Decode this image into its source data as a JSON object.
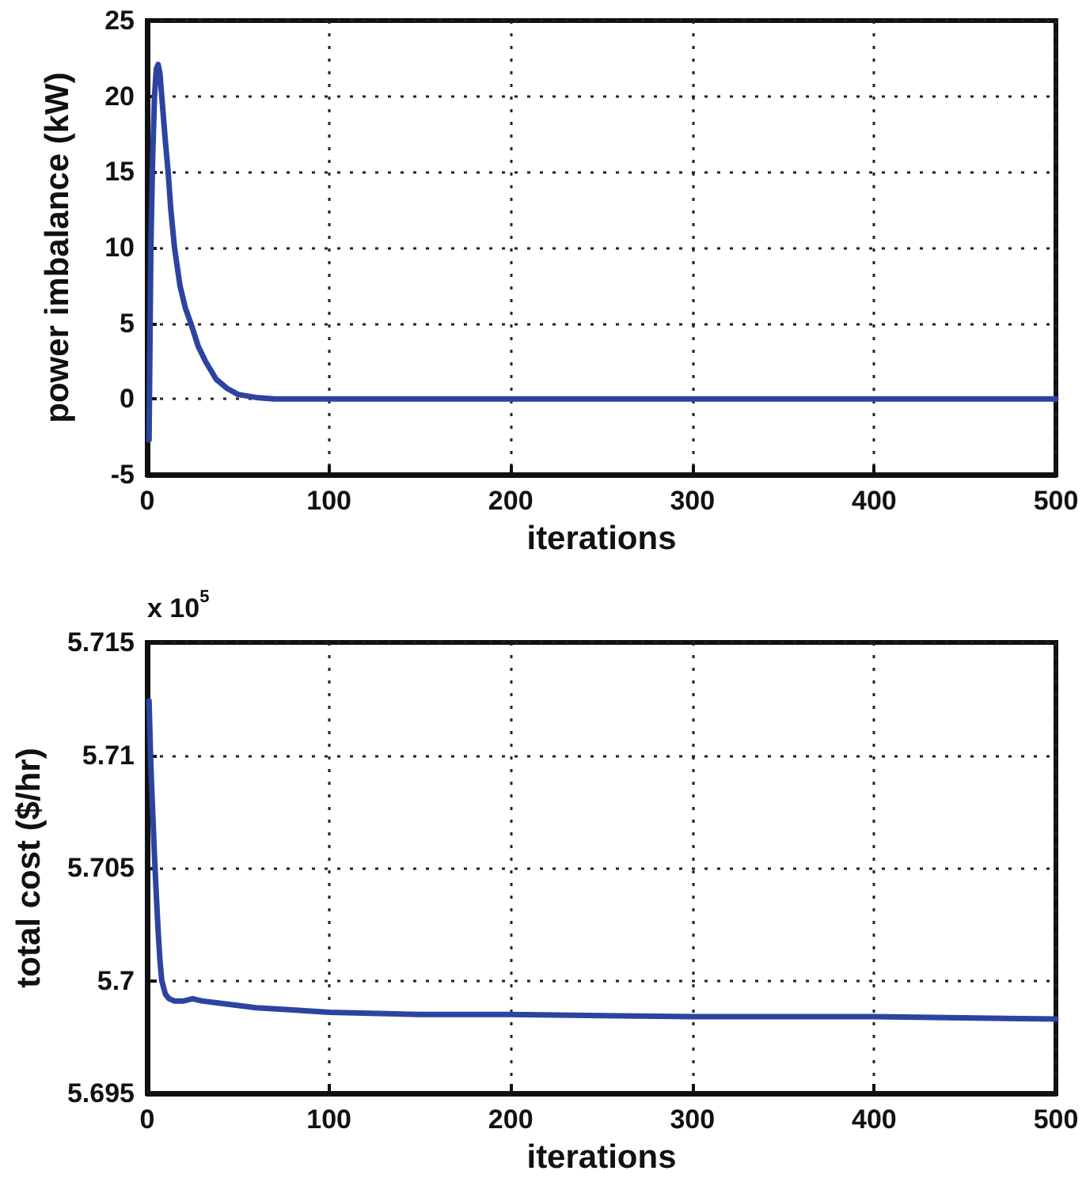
{
  "chart_data": [
    {
      "type": "line",
      "xlabel": "iterations",
      "ylabel": "power imbalance (kW)",
      "xlim": [
        0,
        500
      ],
      "xticks": [
        0,
        100,
        200,
        300,
        400,
        500
      ],
      "ylim": [
        -5,
        25
      ],
      "yticks": [
        -5,
        0,
        5,
        10,
        15,
        20,
        25
      ],
      "grid": true,
      "marker": "none",
      "line_style": "solid",
      "series": [
        {
          "color": "#2e43a0",
          "x": [
            1,
            2,
            3,
            4,
            5,
            6,
            7,
            8,
            10,
            11.5,
            13,
            15,
            18,
            21,
            24,
            28,
            32,
            38,
            44,
            50,
            60,
            70,
            80,
            100,
            150,
            200,
            300,
            400,
            500
          ],
          "values": [
            -2.7,
            10,
            16,
            20,
            21.8,
            22.1,
            21.5,
            20,
            17,
            15,
            12.5,
            10,
            7.5,
            6,
            5,
            3.5,
            2.5,
            1.3,
            0.7,
            0.3,
            0.1,
            0,
            0,
            0,
            0,
            0,
            0,
            0,
            0
          ]
        }
      ]
    },
    {
      "type": "line",
      "xlabel": "iterations",
      "ylabel": "total cost ($/hr)",
      "annotations": [
        "x 10$^{5}$"
      ],
      "xlim": [
        0,
        500
      ],
      "xticks": [
        0,
        100,
        200,
        300,
        400,
        500
      ],
      "ylim": [
        5.695,
        5.715
      ],
      "yticks": [
        5.695,
        5.7,
        5.705,
        5.71,
        5.715
      ],
      "grid": true,
      "marker": "none",
      "line_style": "solid",
      "series": [
        {
          "color": "#2e43a0",
          "x": [
            1,
            2,
            3,
            4,
            5,
            6,
            7,
            8,
            10,
            12,
            15,
            20,
            25,
            30,
            40,
            60,
            80,
            100,
            150,
            200,
            300,
            400,
            500
          ],
          "values": [
            5.7124,
            5.7095,
            5.7075,
            5.7055,
            5.7038,
            5.7022,
            5.7009,
            5.7,
            5.6994,
            5.6992,
            5.6991,
            5.6991,
            5.6992,
            5.6991,
            5.699,
            5.6988,
            5.6987,
            5.6986,
            5.6985,
            5.6985,
            5.6984,
            5.6984,
            5.6983
          ]
        }
      ]
    }
  ]
}
